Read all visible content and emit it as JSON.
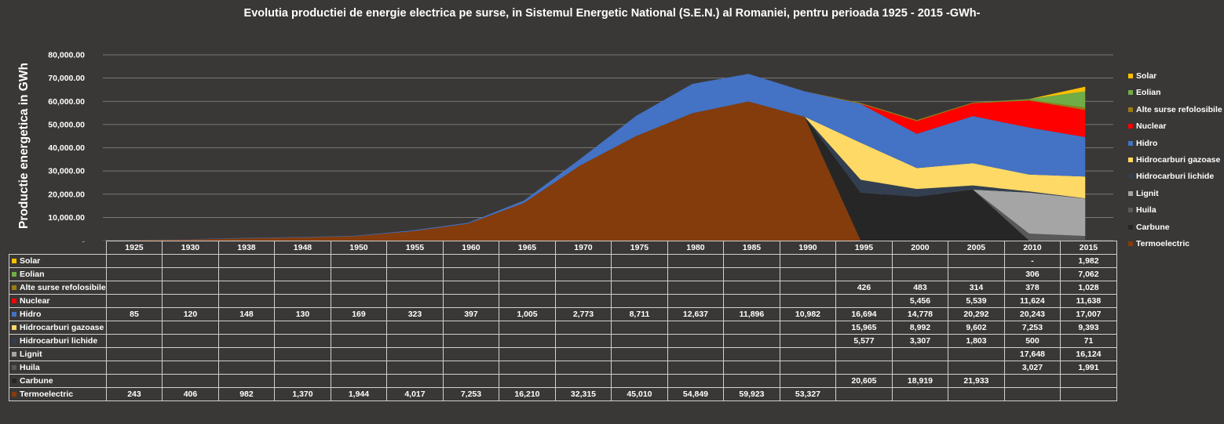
{
  "chart_data": {
    "type": "area",
    "title": "Evolutia productiei de energie electrica pe surse, in Sistemul Energetic National (S.E.N.) al Romaniei, pentru perioada 1925 - 2015 -GWh-",
    "ylabel": "Productie energetica  in GWh",
    "xlabel": "",
    "ylim": [
      0,
      80000
    ],
    "yticks": [
      "-",
      "10,000.00",
      "20,000.00",
      "30,000.00",
      "40,000.00",
      "50,000.00",
      "60,000.00",
      "70,000.00",
      "80,000.00"
    ],
    "grid": true,
    "legend_position": "right",
    "categories": [
      "1925",
      "1930",
      "1938",
      "1948",
      "1950",
      "1955",
      "1960",
      "1965",
      "1970",
      "1975",
      "1980",
      "1985",
      "1990",
      "1995",
      "2000",
      "2005",
      "2010",
      "2015"
    ],
    "series": [
      {
        "name": "Solar",
        "color": "#ffc000",
        "values": [
          null,
          null,
          null,
          null,
          null,
          null,
          null,
          null,
          null,
          null,
          null,
          null,
          null,
          null,
          null,
          null,
          0,
          1982
        ],
        "labels": [
          "",
          "",
          "",
          "",
          "",
          "",
          "",
          "",
          "",
          "",
          "",
          "",
          "",
          "",
          "",
          "",
          "-",
          "1,982"
        ]
      },
      {
        "name": "Eolian",
        "color": "#70ad47",
        "values": [
          null,
          null,
          null,
          null,
          null,
          null,
          null,
          null,
          null,
          null,
          null,
          null,
          null,
          null,
          null,
          null,
          306,
          7062
        ],
        "labels": [
          "",
          "",
          "",
          "",
          "",
          "",
          "",
          "",
          "",
          "",
          "",
          "",
          "",
          "",
          "",
          "",
          "306",
          "7,062"
        ]
      },
      {
        "name": "Alte surse refolosibile",
        "color": "#9c7a14",
        "values": [
          null,
          null,
          null,
          null,
          null,
          null,
          null,
          null,
          null,
          null,
          null,
          null,
          null,
          426,
          483,
          314,
          378,
          1028
        ],
        "labels": [
          "",
          "",
          "",
          "",
          "",
          "",
          "",
          "",
          "",
          "",
          "",
          "",
          "",
          "426",
          "483",
          "314",
          "378",
          "1,028"
        ]
      },
      {
        "name": "Nuclear",
        "color": "#ff0000",
        "values": [
          null,
          null,
          null,
          null,
          null,
          null,
          null,
          null,
          null,
          null,
          null,
          null,
          null,
          null,
          5456,
          5539,
          11624,
          11638
        ],
        "labels": [
          "",
          "",
          "",
          "",
          "",
          "",
          "",
          "",
          "",
          "",
          "",
          "",
          "",
          "",
          "5,456",
          "5,539",
          "11,624",
          "11,638"
        ]
      },
      {
        "name": "Hidro",
        "color": "#4472c4",
        "values": [
          85,
          120,
          148,
          130,
          169,
          323,
          397,
          1005,
          2773,
          8711,
          12637,
          11896,
          10982,
          16694,
          14778,
          20292,
          20243,
          17007
        ],
        "labels": [
          "85",
          "120",
          "148",
          "130",
          "169",
          "323",
          "397",
          "1,005",
          "2,773",
          "8,711",
          "12,637",
          "11,896",
          "10,982",
          "16,694",
          "14,778",
          "20,292",
          "20,243",
          "17,007"
        ]
      },
      {
        "name": "Hidrocarburi gazoase",
        "color": "#ffd966",
        "values": [
          null,
          null,
          null,
          null,
          null,
          null,
          null,
          null,
          null,
          null,
          null,
          null,
          null,
          15965,
          8992,
          9602,
          7253,
          9393
        ],
        "labels": [
          "",
          "",
          "",
          "",
          "",
          "",
          "",
          "",
          "",
          "",
          "",
          "",
          "",
          "15,965",
          "8,992",
          "9,602",
          "7,253",
          "9,393"
        ]
      },
      {
        "name": "Hidrocarburi lichide",
        "color": "#333f50",
        "values": [
          null,
          null,
          null,
          null,
          null,
          null,
          null,
          null,
          null,
          null,
          null,
          null,
          null,
          5577,
          3307,
          1803,
          500,
          71
        ],
        "labels": [
          "",
          "",
          "",
          "",
          "",
          "",
          "",
          "",
          "",
          "",
          "",
          "",
          "",
          "5,577",
          "3,307",
          "1,803",
          "500",
          "71"
        ]
      },
      {
        "name": "Lignit",
        "color": "#a5a5a5",
        "values": [
          null,
          null,
          null,
          null,
          null,
          null,
          null,
          null,
          null,
          null,
          null,
          null,
          null,
          null,
          null,
          null,
          17648,
          16124
        ],
        "labels": [
          "",
          "",
          "",
          "",
          "",
          "",
          "",
          "",
          "",
          "",
          "",
          "",
          "",
          "",
          "",
          "",
          "17,648",
          "16,124"
        ]
      },
      {
        "name": "Huila",
        "color": "#595959",
        "values": [
          null,
          null,
          null,
          null,
          null,
          null,
          null,
          null,
          null,
          null,
          null,
          null,
          null,
          null,
          null,
          null,
          3027,
          1991
        ],
        "labels": [
          "",
          "",
          "",
          "",
          "",
          "",
          "",
          "",
          "",
          "",
          "",
          "",
          "",
          "",
          "",
          "",
          "3,027",
          "1,991"
        ]
      },
      {
        "name": "Carbune",
        "color": "#262626",
        "values": [
          null,
          null,
          null,
          null,
          null,
          null,
          null,
          null,
          null,
          null,
          null,
          null,
          null,
          20605,
          18919,
          21933,
          null,
          null
        ],
        "labels": [
          "",
          "",
          "",
          "",
          "",
          "",
          "",
          "",
          "",
          "",
          "",
          "",
          "",
          "20,605",
          "18,919",
          "21,933",
          "",
          ""
        ]
      },
      {
        "name": "Termoelectric",
        "color": "#843c0c",
        "values": [
          243,
          406,
          982,
          1370,
          1944,
          4017,
          7253,
          16210,
          32315,
          45010,
          54849,
          59923,
          53327,
          null,
          null,
          null,
          null,
          null
        ],
        "labels": [
          "243",
          "406",
          "982",
          "1,370",
          "1,944",
          "4,017",
          "7,253",
          "16,210",
          "32,315",
          "45,010",
          "54,849",
          "59,923",
          "53,327",
          "",
          "",
          "",
          "",
          ""
        ]
      }
    ]
  }
}
